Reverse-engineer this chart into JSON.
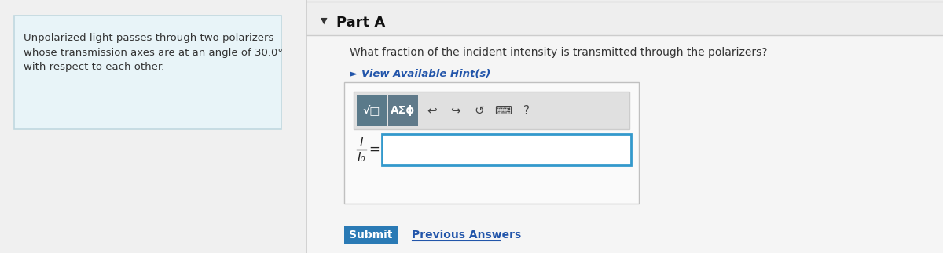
{
  "bg_color": "#f0f0f0",
  "left_panel_bg": "#e8f4f8",
  "left_panel_border": "#c0d8e0",
  "left_panel_text": "Unpolarized light passes through two polarizers\nwhose transmission axes are at an angle of 30.0°\nwith respect to each other.",
  "left_panel_text_color": "#333333",
  "right_panel_bg": "#f5f5f5",
  "right_panel_border": "#e0e0e0",
  "part_a_label": "Part A",
  "triangle_color": "#333333",
  "question_text": "What fraction of the incident intensity is transmitted through the polarizers?",
  "question_color": "#333333",
  "hint_text": "► View Available Hint(s)",
  "hint_color": "#2255aa",
  "toolbar_bg": "#e0e0e0",
  "toolbar_border": "#cccccc",
  "btn1_bg": "#5a7a8a",
  "btn2_bg": "#607a8a",
  "btn1_text": "√□",
  "btn2_text": "AΣϕ",
  "icon_color": "#444444",
  "input_box_bg": "#ffffff",
  "input_box_border": "#3399cc",
  "fraction_I": "I",
  "fraction_I0": "I₀",
  "equals": "=",
  "submit_bg": "#2a7ab5",
  "submit_text": "Submit",
  "submit_text_color": "#ffffff",
  "prev_answers_text": "Previous Answers",
  "prev_answers_color": "#2255aa",
  "outer_box_bg": "#fafafa",
  "outer_box_border": "#c0c0c0",
  "divider_color": "#cccccc",
  "top_border_color": "#cccccc",
  "icons": [
    "↩",
    "↪",
    "↺",
    "⌨",
    "?"
  ]
}
